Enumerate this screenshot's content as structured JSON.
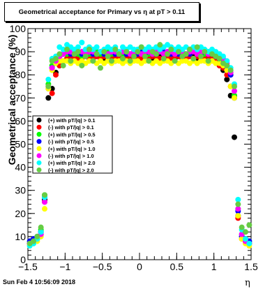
{
  "title": "Geometrical acceptance for Primary vs    η at pT  > 0.11",
  "footer": {
    "timestamp": "Sun Feb  4 10:56:09 2018"
  },
  "colors": {
    "black": "#000000",
    "red": "#ff0000",
    "green": "#00ff00",
    "blue": "#0000ff",
    "yellow": "#ffff00",
    "magenta": "#ff00ff",
    "cyan": "#00ffff",
    "lightgreen": "#66cc44"
  },
  "chart_data": {
    "type": "scatter",
    "xlabel": "η",
    "ylabel": "Geometrical acceptance (%)",
    "xlim": [
      -1.5,
      1.5
    ],
    "ylim": [
      0,
      100
    ],
    "x_ticks": [
      "−1.5",
      "−1",
      "−0.5",
      "0",
      "0.5",
      "1",
      "1.5"
    ],
    "y_ticks": [
      "0",
      "10",
      "20",
      "30",
      "40",
      "50",
      "60",
      "70",
      "80",
      "90",
      "100"
    ],
    "grid": false,
    "legend_position": "left-middle",
    "x": [
      -1.475,
      -1.425,
      -1.375,
      -1.325,
      -1.275,
      -1.225,
      -1.175,
      -1.125,
      -1.075,
      -1.025,
      -0.975,
      -0.925,
      -0.875,
      -0.825,
      -0.775,
      -0.725,
      -0.675,
      -0.625,
      -0.575,
      -0.525,
      -0.475,
      -0.425,
      -0.375,
      -0.325,
      -0.275,
      -0.225,
      -0.175,
      -0.125,
      -0.075,
      -0.025,
      0.025,
      0.075,
      0.125,
      0.175,
      0.225,
      0.275,
      0.325,
      0.375,
      0.425,
      0.475,
      0.525,
      0.575,
      0.625,
      0.675,
      0.725,
      0.775,
      0.825,
      0.875,
      0.925,
      0.975,
      1.025,
      1.075,
      1.125,
      1.175,
      1.225,
      1.275,
      1.325,
      1.375,
      1.425,
      1.475
    ],
    "series": [
      {
        "name": "(+) with pT/|q| > 0.1",
        "color": "#000000",
        "marker": "circle",
        "values": [
          7,
          8,
          9,
          12,
          26,
          70,
          74,
          81,
          84,
          86,
          87,
          88,
          88,
          87,
          88,
          88,
          87,
          87,
          88,
          88,
          87,
          88,
          87,
          86,
          87,
          87,
          88,
          87,
          88,
          89,
          88,
          87,
          88,
          87,
          88,
          88,
          87,
          88,
          88,
          87,
          88,
          89,
          88,
          88,
          88,
          87,
          88,
          88,
          87,
          88,
          86,
          84,
          82,
          78,
          71,
          53,
          19,
          10,
          8,
          7
        ]
      },
      {
        "name": "(-) with pT/|q| > 0.1",
        "color": "#ff0000",
        "marker": "circle",
        "values": [
          7,
          8,
          9,
          11,
          25,
          55,
          72,
          80,
          84,
          86,
          87,
          87,
          88,
          87,
          87,
          88,
          87,
          87,
          88,
          87,
          88,
          87,
          88,
          87,
          87,
          88,
          87,
          88,
          87,
          88,
          87,
          88,
          87,
          88,
          88,
          87,
          87,
          88,
          87,
          88,
          88,
          87,
          87,
          88,
          87,
          88,
          87,
          88,
          88,
          87,
          87,
          84,
          83,
          80,
          75,
          71,
          18,
          9,
          8,
          7
        ]
      },
      {
        "name": "(+) with pT/|q| > 0.5",
        "color": "#00ff00",
        "marker": "circle",
        "values": [
          8,
          9,
          10,
          13,
          28,
          76,
          84,
          86,
          88,
          89,
          89,
          90,
          89,
          89,
          88,
          90,
          89,
          89,
          90,
          89,
          89,
          90,
          89,
          90,
          89,
          89,
          90,
          89,
          90,
          90,
          89,
          90,
          89,
          89,
          90,
          90,
          89,
          90,
          89,
          90,
          89,
          90,
          89,
          89,
          90,
          89,
          90,
          89,
          90,
          89,
          88,
          88,
          86,
          84,
          80,
          71,
          22,
          11,
          9,
          8
        ]
      },
      {
        "name": "(-) with pT/|q| > 0.5",
        "color": "#0000ff",
        "marker": "circle",
        "values": [
          8,
          9,
          10,
          12,
          27,
          74,
          83,
          86,
          88,
          89,
          90,
          89,
          89,
          90,
          89,
          89,
          90,
          89,
          89,
          90,
          89,
          89,
          90,
          89,
          89,
          90,
          89,
          89,
          90,
          89,
          90,
          89,
          90,
          89,
          89,
          90,
          90,
          89,
          89,
          90,
          89,
          90,
          89,
          89,
          90,
          89,
          89,
          90,
          89,
          89,
          88,
          87,
          86,
          83,
          80,
          70,
          21,
          10,
          9,
          8
        ]
      },
      {
        "name": "(+) with pT/|q| > 1.0",
        "color": "#ffff00",
        "marker": "circle",
        "values": [
          6,
          7,
          8,
          10,
          22,
          74,
          82,
          85,
          86,
          86,
          86,
          85,
          86,
          85,
          86,
          85,
          86,
          86,
          85,
          86,
          85,
          86,
          85,
          86,
          86,
          85,
          86,
          85,
          86,
          86,
          85,
          86,
          86,
          85,
          86,
          85,
          86,
          86,
          85,
          86,
          85,
          86,
          86,
          85,
          86,
          85,
          86,
          86,
          85,
          86,
          85,
          85,
          84,
          82,
          75,
          70,
          19,
          9,
          7,
          6
        ]
      },
      {
        "name": "(-) with pT/|q| > 1.0",
        "color": "#ff00ff",
        "marker": "circle",
        "values": [
          7,
          8,
          9,
          11,
          25,
          75,
          83,
          86,
          88,
          89,
          90,
          90,
          89,
          90,
          90,
          89,
          90,
          90,
          89,
          90,
          90,
          89,
          90,
          90,
          89,
          90,
          90,
          89,
          90,
          90,
          89,
          90,
          90,
          89,
          90,
          90,
          89,
          90,
          90,
          89,
          90,
          90,
          89,
          90,
          90,
          89,
          90,
          90,
          89,
          90,
          89,
          89,
          87,
          85,
          81,
          73,
          22,
          11,
          8,
          7
        ]
      },
      {
        "name": "(+) with pT/|q| > 2.0",
        "color": "#00ffff",
        "marker": "circle",
        "values": [
          6,
          7,
          9,
          12,
          27,
          78,
          87,
          88,
          92,
          91,
          93,
          92,
          91,
          92,
          94,
          91,
          92,
          91,
          92,
          90,
          91,
          92,
          91,
          92,
          90,
          92,
          91,
          92,
          91,
          91,
          92,
          91,
          92,
          91,
          92,
          91,
          92,
          93,
          92,
          91,
          92,
          91,
          92,
          91,
          92,
          91,
          92,
          91,
          90,
          91,
          90,
          89,
          88,
          86,
          83,
          76,
          26,
          13,
          9,
          7
        ]
      },
      {
        "name": "(-) with pT/|q| > 2.0",
        "color": "#66cc44",
        "marker": "circle",
        "values": [
          7,
          8,
          10,
          14,
          28,
          75,
          86,
          87,
          89,
          84,
          91,
          86,
          89,
          90,
          84,
          88,
          91,
          86,
          89,
          83,
          90,
          88,
          86,
          91,
          89,
          87,
          90,
          86,
          88,
          90,
          92,
          88,
          86,
          90,
          89,
          93,
          87,
          89,
          91,
          86,
          90,
          88,
          89,
          91,
          87,
          92,
          88,
          90,
          86,
          89,
          88,
          87,
          85,
          84,
          82,
          75,
          24,
          14,
          12,
          15
        ]
      }
    ]
  }
}
